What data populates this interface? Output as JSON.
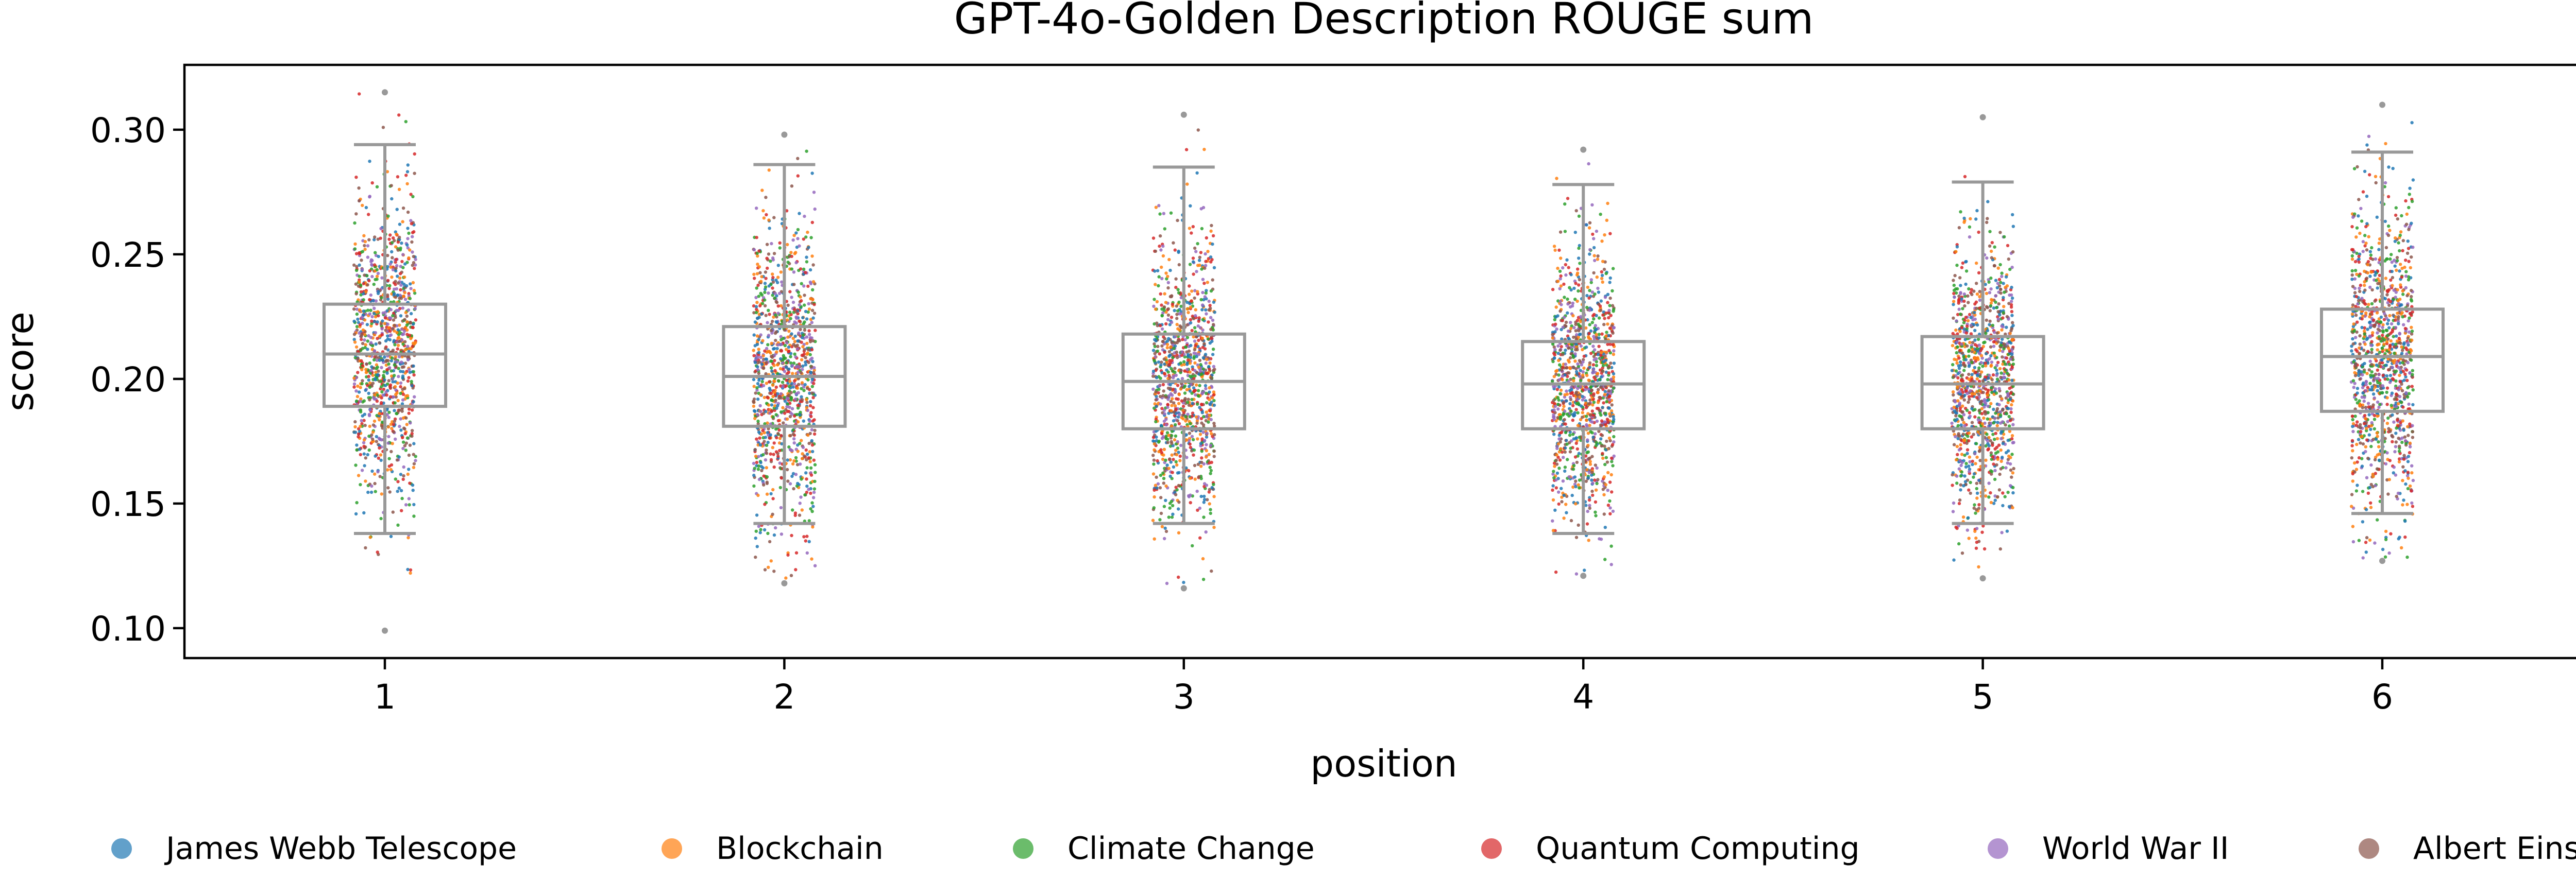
{
  "chart_data": {
    "type": "box",
    "title": "GPT-4o-Golden Description ROUGE sum",
    "xlabel": "position",
    "ylabel": "score",
    "ylim": [
      0.088,
      0.326
    ],
    "yticks": [
      "0.10",
      "0.15",
      "0.20",
      "0.25",
      "0.30"
    ],
    "categories": [
      "1",
      "2",
      "3",
      "4",
      "5",
      "6"
    ],
    "box_stats": [
      {
        "position": "1",
        "whisker_low": 0.138,
        "q1": 0.189,
        "median": 0.21,
        "q3": 0.23,
        "whisker_high": 0.294,
        "min": 0.099,
        "max": 0.315
      },
      {
        "position": "2",
        "whisker_low": 0.142,
        "q1": 0.181,
        "median": 0.201,
        "q3": 0.221,
        "whisker_high": 0.286,
        "min": 0.118,
        "max": 0.298
      },
      {
        "position": "3",
        "whisker_low": 0.142,
        "q1": 0.18,
        "median": 0.199,
        "q3": 0.218,
        "whisker_high": 0.285,
        "min": 0.116,
        "max": 0.306
      },
      {
        "position": "4",
        "whisker_low": 0.138,
        "q1": 0.18,
        "median": 0.198,
        "q3": 0.215,
        "whisker_high": 0.278,
        "min": 0.121,
        "max": 0.292
      },
      {
        "position": "5",
        "whisker_low": 0.142,
        "q1": 0.18,
        "median": 0.198,
        "q3": 0.217,
        "whisker_high": 0.279,
        "min": 0.12,
        "max": 0.305
      },
      {
        "position": "6",
        "whisker_low": 0.146,
        "q1": 0.187,
        "median": 0.209,
        "q3": 0.228,
        "whisker_high": 0.291,
        "min": 0.127,
        "max": 0.31
      }
    ],
    "series": [
      {
        "name": "James Webb Telescope",
        "color": "#1f77b4"
      },
      {
        "name": "Blockchain",
        "color": "#ff7f0e"
      },
      {
        "name": "Climate Change",
        "color": "#2ca02c"
      },
      {
        "name": "Quantum Computing",
        "color": "#d62728"
      },
      {
        "name": "World War II",
        "color": "#9467bd"
      },
      {
        "name": "Albert Einstein",
        "color": "#8c564b"
      }
    ],
    "box_color": "#999999",
    "grid": false,
    "legend_position": "bottom"
  }
}
